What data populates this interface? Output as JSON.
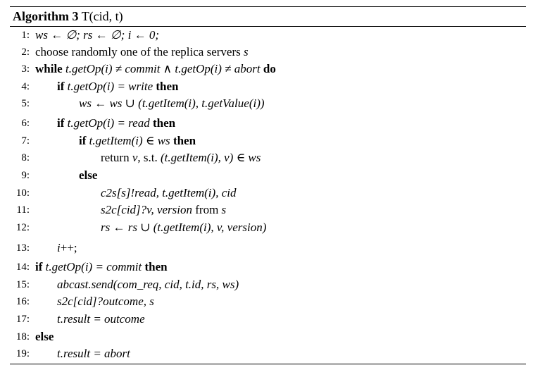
{
  "caption": {
    "label": "Algorithm 3",
    "title": "T(cid, t)"
  },
  "lines": [
    {
      "num": "1:",
      "indent": 0,
      "parts": [
        {
          "t": "ws ← ∅; rs ← ∅; i ← 0;",
          "s": "m"
        }
      ]
    },
    {
      "num": "2:",
      "indent": 0,
      "parts": [
        {
          "t": "choose randomly one of the replica servers ",
          "s": "n"
        },
        {
          "t": "s",
          "s": "m"
        }
      ]
    },
    {
      "num": "3:",
      "indent": 0,
      "parts": [
        {
          "t": "while",
          "s": "k"
        },
        {
          "t": " t.getOp(i) ≠ commit ∧ t.getOp(i) ≠ abort ",
          "s": "m"
        },
        {
          "t": "do",
          "s": "k"
        }
      ]
    },
    {
      "num": "4:",
      "indent": 1,
      "parts": [
        {
          "t": "if",
          "s": "k"
        },
        {
          "t": " t.getOp(i) = write ",
          "s": "m"
        },
        {
          "t": "then",
          "s": "k"
        }
      ]
    },
    {
      "num": "5:",
      "indent": 2,
      "parts": [
        {
          "t": "ws ← ws ∪ (t.getItem(i), t.getValue(i))",
          "s": "m"
        }
      ]
    },
    {
      "num": "6:",
      "indent": 1,
      "parts": [
        {
          "t": "if",
          "s": "k"
        },
        {
          "t": " t.getOp(i) = read ",
          "s": "m"
        },
        {
          "t": "then",
          "s": "k"
        }
      ]
    },
    {
      "num": "7:",
      "indent": 2,
      "parts": [
        {
          "t": "if",
          "s": "k"
        },
        {
          "t": " t.getItem(i) ∈ ws ",
          "s": "m"
        },
        {
          "t": "then",
          "s": "k"
        }
      ]
    },
    {
      "num": "8:",
      "indent": 3,
      "parts": [
        {
          "t": "return ",
          "s": "n"
        },
        {
          "t": "v",
          "s": "m"
        },
        {
          "t": ", s.t. ",
          "s": "n"
        },
        {
          "t": "(t.getItem(i), v) ∈ ws",
          "s": "m"
        }
      ]
    },
    {
      "num": "9:",
      "indent": 2,
      "parts": [
        {
          "t": "else",
          "s": "k"
        }
      ]
    },
    {
      "num": "10:",
      "indent": 3,
      "parts": [
        {
          "t": "c2s[s]!read, t.getItem(i), cid",
          "s": "m"
        }
      ]
    },
    {
      "num": "11:",
      "indent": 3,
      "parts": [
        {
          "t": "s2c[cid]?v, version",
          "s": "m"
        },
        {
          "t": " from ",
          "s": "n"
        },
        {
          "t": "s",
          "s": "m"
        }
      ]
    },
    {
      "num": "12:",
      "indent": 3,
      "parts": [
        {
          "t": "rs ← rs ∪ (t.getItem(i), v, version)",
          "s": "m"
        }
      ]
    },
    {
      "num": "13:",
      "indent": 1,
      "parts": [
        {
          "t": "i",
          "s": "m"
        },
        {
          "t": "++;",
          "s": "n"
        }
      ]
    },
    {
      "num": "14:",
      "indent": 0,
      "parts": [
        {
          "t": "if",
          "s": "k"
        },
        {
          "t": " t.getOp(i) = commit ",
          "s": "m"
        },
        {
          "t": "then",
          "s": "k"
        }
      ]
    },
    {
      "num": "15:",
      "indent": 1,
      "parts": [
        {
          "t": "abcast.send(com_req, cid, t.id, rs, ws)",
          "s": "m"
        }
      ]
    },
    {
      "num": "16:",
      "indent": 1,
      "parts": [
        {
          "t": "s2c[cid]?outcome, s",
          "s": "m"
        }
      ]
    },
    {
      "num": "17:",
      "indent": 1,
      "parts": [
        {
          "t": "t.result = outcome",
          "s": "m"
        }
      ]
    },
    {
      "num": "18:",
      "indent": 0,
      "parts": [
        {
          "t": "else",
          "s": "k"
        }
      ]
    },
    {
      "num": "19:",
      "indent": 1,
      "parts": [
        {
          "t": "t.result = abort",
          "s": "m"
        }
      ]
    }
  ]
}
